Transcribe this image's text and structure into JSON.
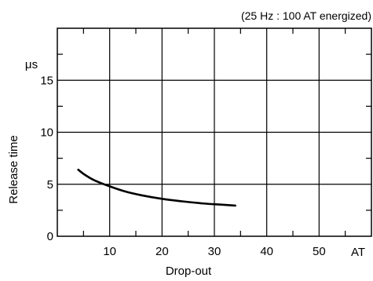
{
  "chart_data": {
    "type": "line",
    "title": "",
    "annotation": "(25 Hz : 100 AT energized)",
    "xlabel": "Drop-out",
    "x_unit": "AT",
    "ylabel": "Release time",
    "y_unit": "μs",
    "xlim": [
      0,
      60
    ],
    "ylim": [
      0,
      20
    ],
    "x_major_ticks": [
      10,
      20,
      30,
      40,
      50
    ],
    "x_minor_ticks": [
      5,
      15,
      25,
      35,
      45,
      55
    ],
    "y_major_ticks": [
      0,
      5,
      10,
      15
    ],
    "y_minor_ticks": [
      2.5,
      7.5,
      12.5,
      17.5
    ],
    "x_tick_labels": [
      "10",
      "20",
      "30",
      "40",
      "50"
    ],
    "y_tick_labels": [
      "0",
      "5",
      "10",
      "15"
    ],
    "grid": true,
    "colors": {
      "line": "#000000",
      "grid": "#000000"
    },
    "series": [
      {
        "x": [
          4,
          5,
          7,
          10,
          13,
          16,
          20,
          24,
          28,
          31,
          34
        ],
        "y": [
          6.4,
          6.0,
          5.4,
          4.8,
          4.3,
          3.95,
          3.6,
          3.35,
          3.15,
          3.05,
          2.95
        ]
      }
    ]
  }
}
